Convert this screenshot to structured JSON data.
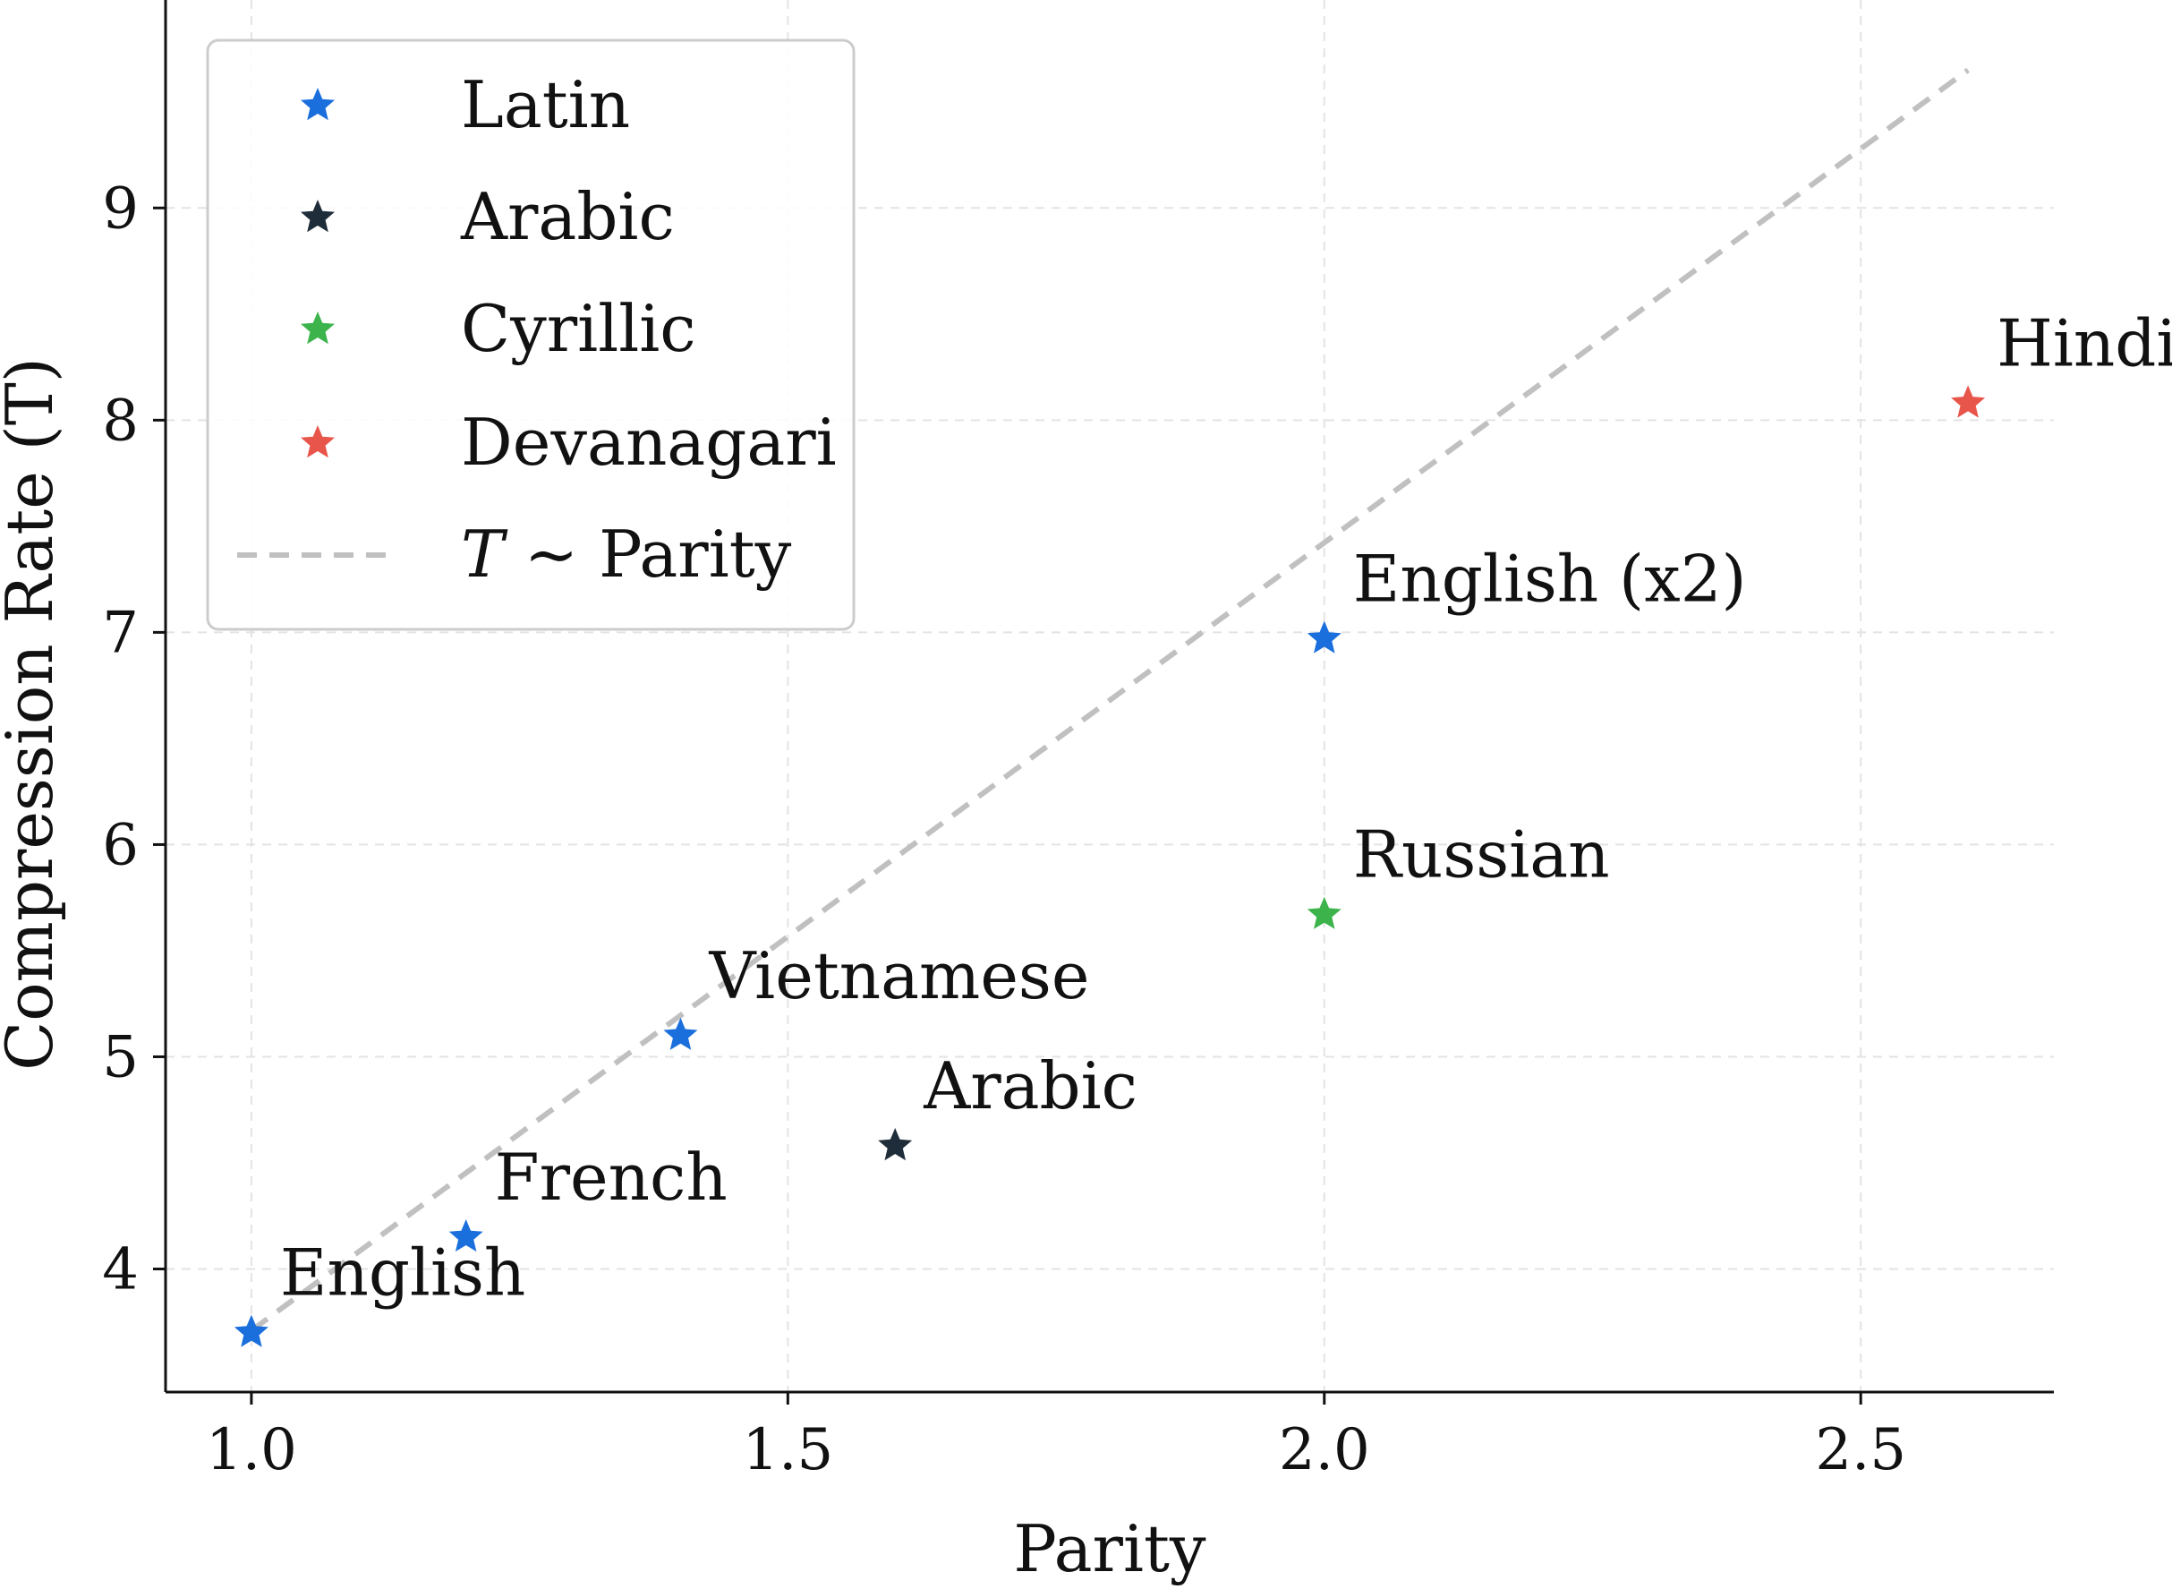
{
  "chart_data": {
    "type": "scatter",
    "title": "",
    "xlabel": "Parity",
    "ylabel": "Compression Rate (T)",
    "xlim": [
      0.92,
      2.68
    ],
    "ylim": [
      3.42,
      9.98
    ],
    "xticks": [
      1.0,
      1.5,
      2.0,
      2.5
    ],
    "xtick_labels": [
      "1.0",
      "1.5",
      "2.0",
      "2.5"
    ],
    "yticks": [
      4,
      5,
      6,
      7,
      8,
      9
    ],
    "ytick_labels": [
      "4",
      "5",
      "6",
      "7",
      "8",
      "9"
    ],
    "grid": true,
    "legend_position": "top-left",
    "series": [
      {
        "name": "Latin",
        "color": "#1a6fdc",
        "marker": "star",
        "points": [
          {
            "x": 1.0,
            "y": 3.7,
            "label": "English"
          },
          {
            "x": 1.2,
            "y": 4.15,
            "label": "French"
          },
          {
            "x": 1.4,
            "y": 5.1,
            "label": "Vietnamese"
          },
          {
            "x": 2.0,
            "y": 6.97,
            "label": "English (x2)"
          }
        ]
      },
      {
        "name": "Arabic",
        "color": "#1f2d3a",
        "marker": "star",
        "points": [
          {
            "x": 1.6,
            "y": 4.58,
            "label": "Arabic"
          }
        ]
      },
      {
        "name": "Cyrillic",
        "color": "#3cb44b",
        "marker": "star",
        "points": [
          {
            "x": 2.0,
            "y": 5.67,
            "label": "Russian"
          }
        ]
      },
      {
        "name": "Devanagari",
        "color": "#e8554a",
        "marker": "star",
        "points": [
          {
            "x": 2.6,
            "y": 8.08,
            "label": "Hindi"
          }
        ]
      }
    ],
    "trend_line": {
      "name_prefix": "T",
      "name_rest": " ∼ Parity",
      "color": "#c0c0c0",
      "style": "dashed",
      "points": [
        [
          1.0,
          3.71
        ],
        [
          2.6,
          9.65
        ]
      ]
    }
  }
}
